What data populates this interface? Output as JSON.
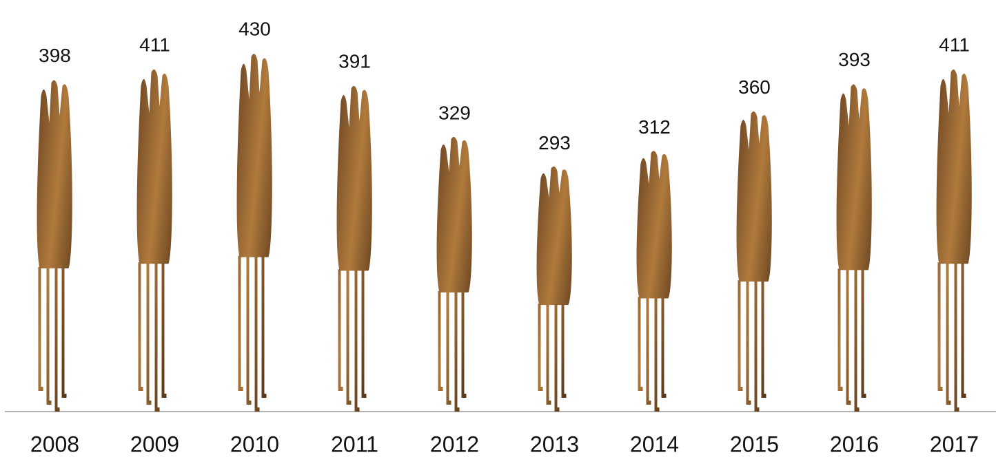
{
  "chart_data": {
    "type": "bar",
    "categories": [
      "2008",
      "2009",
      "2010",
      "2011",
      "2012",
      "2013",
      "2014",
      "2015",
      "2016",
      "2017"
    ],
    "values": [
      398,
      411,
      430,
      391,
      329,
      293,
      312,
      360,
      393,
      411
    ],
    "color": "#b07a3c"
  }
}
